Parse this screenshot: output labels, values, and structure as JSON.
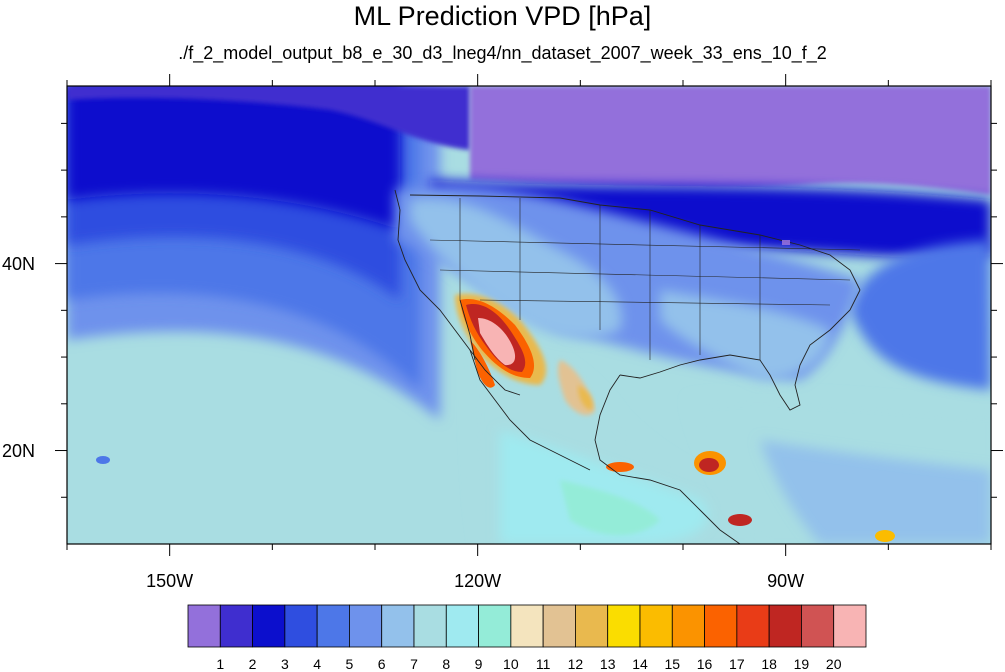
{
  "title": "ML Prediction VPD [hPa]",
  "subtitle": "./f_2_model_output_b8_e_30_d3_lneg4/nn_dataset_2007_week_33_ens_10_f_2",
  "map": {
    "lon_range": [
      -160,
      -70
    ],
    "lat_range": [
      10,
      59
    ],
    "lon_ticks": [
      {
        "lon": -150,
        "label": "150W"
      },
      {
        "lon": -120,
        "label": "120W"
      },
      {
        "lon": -90,
        "label": "90W"
      }
    ],
    "lat_ticks": [
      {
        "lat": 40,
        "label": "40N"
      },
      {
        "lat": 20,
        "label": "20N"
      }
    ]
  },
  "colorbar": {
    "colors": [
      "#9370db",
      "#3f2ecf",
      "#0c0fcd",
      "#2f4ee0",
      "#4d77e8",
      "#6e92ec",
      "#93c1eb",
      "#a9dde2",
      "#9feaf0",
      "#94ecd8",
      "#f4e4be",
      "#e2c293",
      "#e9b94e",
      "#fadd00",
      "#fbbc00",
      "#fb9300",
      "#fb6200",
      "#e93c17",
      "#bf2622",
      "#d05353",
      "#f8b4b4"
    ],
    "labels": [
      "1",
      "2",
      "3",
      "4",
      "5",
      "6",
      "7",
      "8",
      "9",
      "10",
      "11",
      "12",
      "13",
      "14",
      "15",
      "16",
      "17",
      "18",
      "19",
      "20"
    ]
  }
}
